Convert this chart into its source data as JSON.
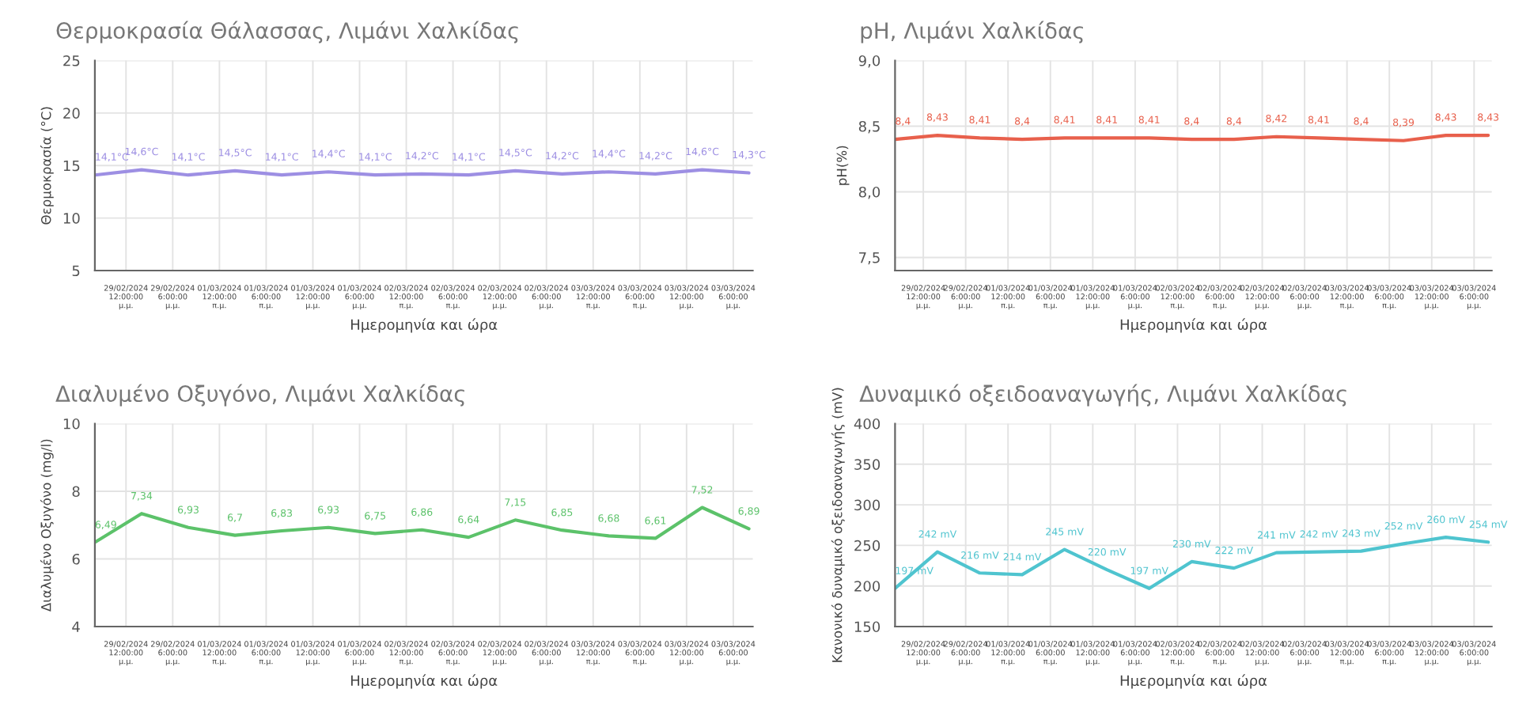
{
  "chart_data": [
    {
      "type": "line",
      "title": "Θερμοκρασία Θάλασσας, Λιμάνι Χαλκίδας",
      "xlabel": "Ημερομηνία και ώρα",
      "ylabel": "Θερμοκρασία (°C)",
      "x": [
        "2024-02-29T08:00",
        "2024-02-29T14:00",
        "2024-02-29T20:00",
        "2024-03-01T02:00",
        "2024-03-01T08:00",
        "2024-03-01T14:00",
        "2024-03-01T20:00",
        "2024-03-02T02:00",
        "2024-03-02T08:00",
        "2024-03-02T14:00",
        "2024-03-02T20:00",
        "2024-03-03T02:00",
        "2024-03-03T08:00",
        "2024-03-03T14:00",
        "2024-03-03T20:00"
      ],
      "series": [
        {
          "color": "#9d8fe3",
          "values": [
            14.1,
            14.6,
            14.1,
            14.5,
            14.1,
            14.4,
            14.1,
            14.2,
            14.1,
            14.5,
            14.2,
            14.4,
            14.2,
            14.6,
            14.3
          ],
          "value_labels": [
            "14,1°C",
            "14,6°C",
            "14,1°C",
            "14,5°C",
            "14,1°C",
            "14,4°C",
            "14,1°C",
            "14,2°C",
            "14,1°C",
            "14,5°C",
            "14,2°C",
            "14,4°C",
            "14,2°C",
            "14,6°C",
            "14,3°C"
          ]
        }
      ],
      "xlim": [
        "2024-02-29T08:00",
        "2024-03-03T20:30"
      ],
      "xticks": [
        {
          "value": "2024-02-29T12:00",
          "label": "29/02/2024 12:00:00 μ.μ."
        },
        {
          "value": "2024-02-29T18:00",
          "label": "29/02/2024 6:00:00 μ.μ."
        },
        {
          "value": "2024-03-01T00:00",
          "label": "01/03/2024 12:00:00 π.μ."
        },
        {
          "value": "2024-03-01T06:00",
          "label": "01/03/2024 6:00:00 π.μ."
        },
        {
          "value": "2024-03-01T12:00",
          "label": "01/03/2024 12:00:00 μ.μ."
        },
        {
          "value": "2024-03-01T18:00",
          "label": "01/03/2024 6:00:00 μ.μ."
        },
        {
          "value": "2024-03-02T00:00",
          "label": "02/03/2024 12:00:00 π.μ."
        },
        {
          "value": "2024-03-02T06:00",
          "label": "02/03/2024 6:00:00 π.μ."
        },
        {
          "value": "2024-03-02T12:00",
          "label": "02/03/2024 12:00:00 μ.μ."
        },
        {
          "value": "2024-03-02T18:00",
          "label": "02/03/2024 6:00:00 μ.μ."
        },
        {
          "value": "2024-03-03T00:00",
          "label": "03/03/2024 12:00:00 π.μ."
        },
        {
          "value": "2024-03-03T06:00",
          "label": "03/03/2024 6:00:00 π.μ."
        },
        {
          "value": "2024-03-03T12:00",
          "label": "03/03/2024 12:00:00 μ.μ."
        },
        {
          "value": "2024-03-03T18:00",
          "label": "03/03/2024 6:00:00 μ.μ."
        }
      ],
      "ylim": [
        5,
        25
      ],
      "yticks": [
        5,
        10,
        15,
        20,
        25
      ],
      "grid": true,
      "marker": "none",
      "line_style": "solid"
    },
    {
      "type": "line",
      "title": "pH, Λιμάνι Χαλκίδας",
      "xlabel": "Ημερομηνία και ώρα",
      "ylabel": "pH(%)",
      "x": [
        "2024-02-29T08:00",
        "2024-02-29T14:00",
        "2024-02-29T20:00",
        "2024-03-01T02:00",
        "2024-03-01T08:00",
        "2024-03-01T14:00",
        "2024-03-01T20:00",
        "2024-03-02T02:00",
        "2024-03-02T08:00",
        "2024-03-02T14:00",
        "2024-03-02T20:00",
        "2024-03-03T02:00",
        "2024-03-03T08:00",
        "2024-03-03T14:00",
        "2024-03-03T20:00"
      ],
      "series": [
        {
          "color": "#e8604c",
          "values": [
            8.4,
            8.43,
            8.41,
            8.4,
            8.41,
            8.41,
            8.41,
            8.4,
            8.4,
            8.42,
            8.41,
            8.4,
            8.39,
            8.43,
            8.43
          ],
          "value_labels": [
            "8,4",
            "8,43",
            "8,41",
            "8,4",
            "8,41",
            "8,41",
            "8,41",
            "8,4",
            "8,4",
            "8,42",
            "8,41",
            "8,4",
            "8,39",
            "8,43",
            "8,43"
          ]
        }
      ],
      "xlim": [
        "2024-02-29T08:00",
        "2024-03-03T20:30"
      ],
      "xticks": [
        {
          "value": "2024-02-29T12:00",
          "label": "29/02/2024 12:00:00 μ.μ."
        },
        {
          "value": "2024-02-29T18:00",
          "label": "29/02/2024 6:00:00 μ.μ."
        },
        {
          "value": "2024-03-01T00:00",
          "label": "01/03/2024 12:00:00 π.μ."
        },
        {
          "value": "2024-03-01T06:00",
          "label": "01/03/2024 6:00:00 π.μ."
        },
        {
          "value": "2024-03-01T12:00",
          "label": "01/03/2024 12:00:00 μ.μ."
        },
        {
          "value": "2024-03-01T18:00",
          "label": "01/03/2024 6:00:00 μ.μ."
        },
        {
          "value": "2024-03-02T00:00",
          "label": "02/03/2024 12:00:00 π.μ."
        },
        {
          "value": "2024-03-02T06:00",
          "label": "02/03/2024 6:00:00 π.μ."
        },
        {
          "value": "2024-03-02T12:00",
          "label": "02/03/2024 12:00:00 μ.μ."
        },
        {
          "value": "2024-03-02T18:00",
          "label": "02/03/2024 6:00:00 μ.μ."
        },
        {
          "value": "2024-03-03T00:00",
          "label": "03/03/2024 12:00:00 π.μ."
        },
        {
          "value": "2024-03-03T06:00",
          "label": "03/03/2024 6:00:00 π.μ."
        },
        {
          "value": "2024-03-03T12:00",
          "label": "03/03/2024 12:00:00 μ.μ."
        },
        {
          "value": "2024-03-03T18:00",
          "label": "03/03/2024 6:00:00 μ.μ."
        }
      ],
      "ylim": [
        7.4,
        9.0
      ],
      "yticks": [
        {
          "value": 7.5,
          "label": "7,5"
        },
        {
          "value": 8.0,
          "label": "8,0"
        },
        {
          "value": 8.5,
          "label": "8,5"
        },
        {
          "value": 9.0,
          "label": "9,0"
        }
      ],
      "grid": true,
      "marker": "none",
      "line_style": "solid"
    },
    {
      "type": "line",
      "title": "Διαλυμένο Οξυγόνο, Λιμάνι Χαλκίδας",
      "xlabel": "Ημερομηνία και ώρα",
      "ylabel": "Διαλυμένο Οξυγόνο (mg/l)",
      "x": [
        "2024-02-29T08:00",
        "2024-02-29T14:00",
        "2024-02-29T20:00",
        "2024-03-01T02:00",
        "2024-03-01T08:00",
        "2024-03-01T14:00",
        "2024-03-01T20:00",
        "2024-03-02T02:00",
        "2024-03-02T08:00",
        "2024-03-02T14:00",
        "2024-03-02T20:00",
        "2024-03-03T02:00",
        "2024-03-03T08:00",
        "2024-03-03T14:00",
        "2024-03-03T20:00"
      ],
      "series": [
        {
          "color": "#5cc26a",
          "values": [
            6.49,
            7.34,
            6.93,
            6.7,
            6.83,
            6.93,
            6.75,
            6.86,
            6.64,
            7.15,
            6.85,
            6.68,
            6.61,
            7.52,
            6.89
          ],
          "value_labels": [
            "6,49",
            "7,34",
            "6,93",
            "6,7",
            "6,83",
            "6,93",
            "6,75",
            "6,86",
            "6,64",
            "7,15",
            "6,85",
            "6,68",
            "6,61",
            "7,52",
            "6,89"
          ]
        }
      ],
      "xlim": [
        "2024-02-29T08:00",
        "2024-03-03T20:30"
      ],
      "xticks": [
        {
          "value": "2024-02-29T12:00",
          "label": "29/02/2024 12:00:00 μ.μ."
        },
        {
          "value": "2024-02-29T18:00",
          "label": "29/02/2024 6:00:00 μ.μ."
        },
        {
          "value": "2024-03-01T00:00",
          "label": "01/03/2024 12:00:00 π.μ."
        },
        {
          "value": "2024-03-01T06:00",
          "label": "01/03/2024 6:00:00 π.μ."
        },
        {
          "value": "2024-03-01T12:00",
          "label": "01/03/2024 12:00:00 μ.μ."
        },
        {
          "value": "2024-03-01T18:00",
          "label": "01/03/2024 6:00:00 μ.μ."
        },
        {
          "value": "2024-03-02T00:00",
          "label": "02/03/2024 12:00:00 π.μ."
        },
        {
          "value": "2024-03-02T06:00",
          "label": "02/03/2024 6:00:00 π.μ."
        },
        {
          "value": "2024-03-02T12:00",
          "label": "02/03/2024 12:00:00 μ.μ."
        },
        {
          "value": "2024-03-02T18:00",
          "label": "02/03/2024 6:00:00 μ.μ."
        },
        {
          "value": "2024-03-03T00:00",
          "label": "03/03/2024 12:00:00 π.μ."
        },
        {
          "value": "2024-03-03T06:00",
          "label": "03/03/2024 6:00:00 π.μ."
        },
        {
          "value": "2024-03-03T12:00",
          "label": "03/03/2024 12:00:00 μ.μ."
        },
        {
          "value": "2024-03-03T18:00",
          "label": "03/03/2024 6:00:00 μ.μ."
        }
      ],
      "ylim": [
        4,
        10
      ],
      "yticks": [
        4,
        6,
        8,
        10
      ],
      "grid": true,
      "marker": "none",
      "line_style": "solid"
    },
    {
      "type": "line",
      "title": "Δυναμικό οξειδοαναγωγής, Λιμάνι Χαλκίδας",
      "xlabel": "Ημερομηνία και ώρα",
      "ylabel": "Κανονικό δυναμικό οξειδοαναγωγής (mV)",
      "x": [
        "2024-02-29T08:00",
        "2024-02-29T14:00",
        "2024-02-29T20:00",
        "2024-03-01T02:00",
        "2024-03-01T08:00",
        "2024-03-01T14:00",
        "2024-03-01T20:00",
        "2024-03-02T02:00",
        "2024-03-02T08:00",
        "2024-03-02T14:00",
        "2024-03-02T20:00",
        "2024-03-03T02:00",
        "2024-03-03T08:00",
        "2024-03-03T14:00",
        "2024-03-03T20:00"
      ],
      "series": [
        {
          "color": "#4fc4cf",
          "values": [
            197,
            242,
            216,
            214,
            245,
            220,
            197,
            230,
            222,
            241,
            242,
            243,
            252,
            260,
            254
          ],
          "value_labels": [
            "197 mV",
            "242 mV",
            "216 mV",
            "214 mV",
            "245 mV",
            "220 mV",
            "197 mV",
            "230 mV",
            "222 mV",
            "241 mV",
            "242 mV",
            "243 mV",
            "252 mV",
            "260 mV",
            "254 mV"
          ]
        }
      ],
      "xlim": [
        "2024-02-29T08:00",
        "2024-03-03T20:30"
      ],
      "xticks": [
        {
          "value": "2024-02-29T12:00",
          "label": "29/02/2024 12:00:00 μ.μ."
        },
        {
          "value": "2024-02-29T18:00",
          "label": "29/02/2024 6:00:00 μ.μ."
        },
        {
          "value": "2024-03-01T00:00",
          "label": "01/03/2024 12:00:00 π.μ."
        },
        {
          "value": "2024-03-01T06:00",
          "label": "01/03/2024 6:00:00 π.μ."
        },
        {
          "value": "2024-03-01T12:00",
          "label": "01/03/2024 12:00:00 μ.μ."
        },
        {
          "value": "2024-03-01T18:00",
          "label": "01/03/2024 6:00:00 μ.μ."
        },
        {
          "value": "2024-03-02T00:00",
          "label": "02/03/2024 12:00:00 π.μ."
        },
        {
          "value": "2024-03-02T06:00",
          "label": "02/03/2024 6:00:00 π.μ."
        },
        {
          "value": "2024-03-02T12:00",
          "label": "02/03/2024 12:00:00 μ.μ."
        },
        {
          "value": "2024-03-02T18:00",
          "label": "02/03/2024 6:00:00 μ.μ."
        },
        {
          "value": "2024-03-03T00:00",
          "label": "03/03/2024 12:00:00 π.μ."
        },
        {
          "value": "2024-03-03T06:00",
          "label": "03/03/2024 6:00:00 π.μ."
        },
        {
          "value": "2024-03-03T12:00",
          "label": "03/03/2024 12:00:00 μ.μ."
        },
        {
          "value": "2024-03-03T18:00",
          "label": "03/03/2024 6:00:00 μ.μ."
        }
      ],
      "ylim": [
        150,
        400
      ],
      "yticks": [
        150,
        200,
        250,
        300,
        350,
        400
      ],
      "grid": true,
      "marker": "none",
      "line_style": "solid"
    }
  ]
}
